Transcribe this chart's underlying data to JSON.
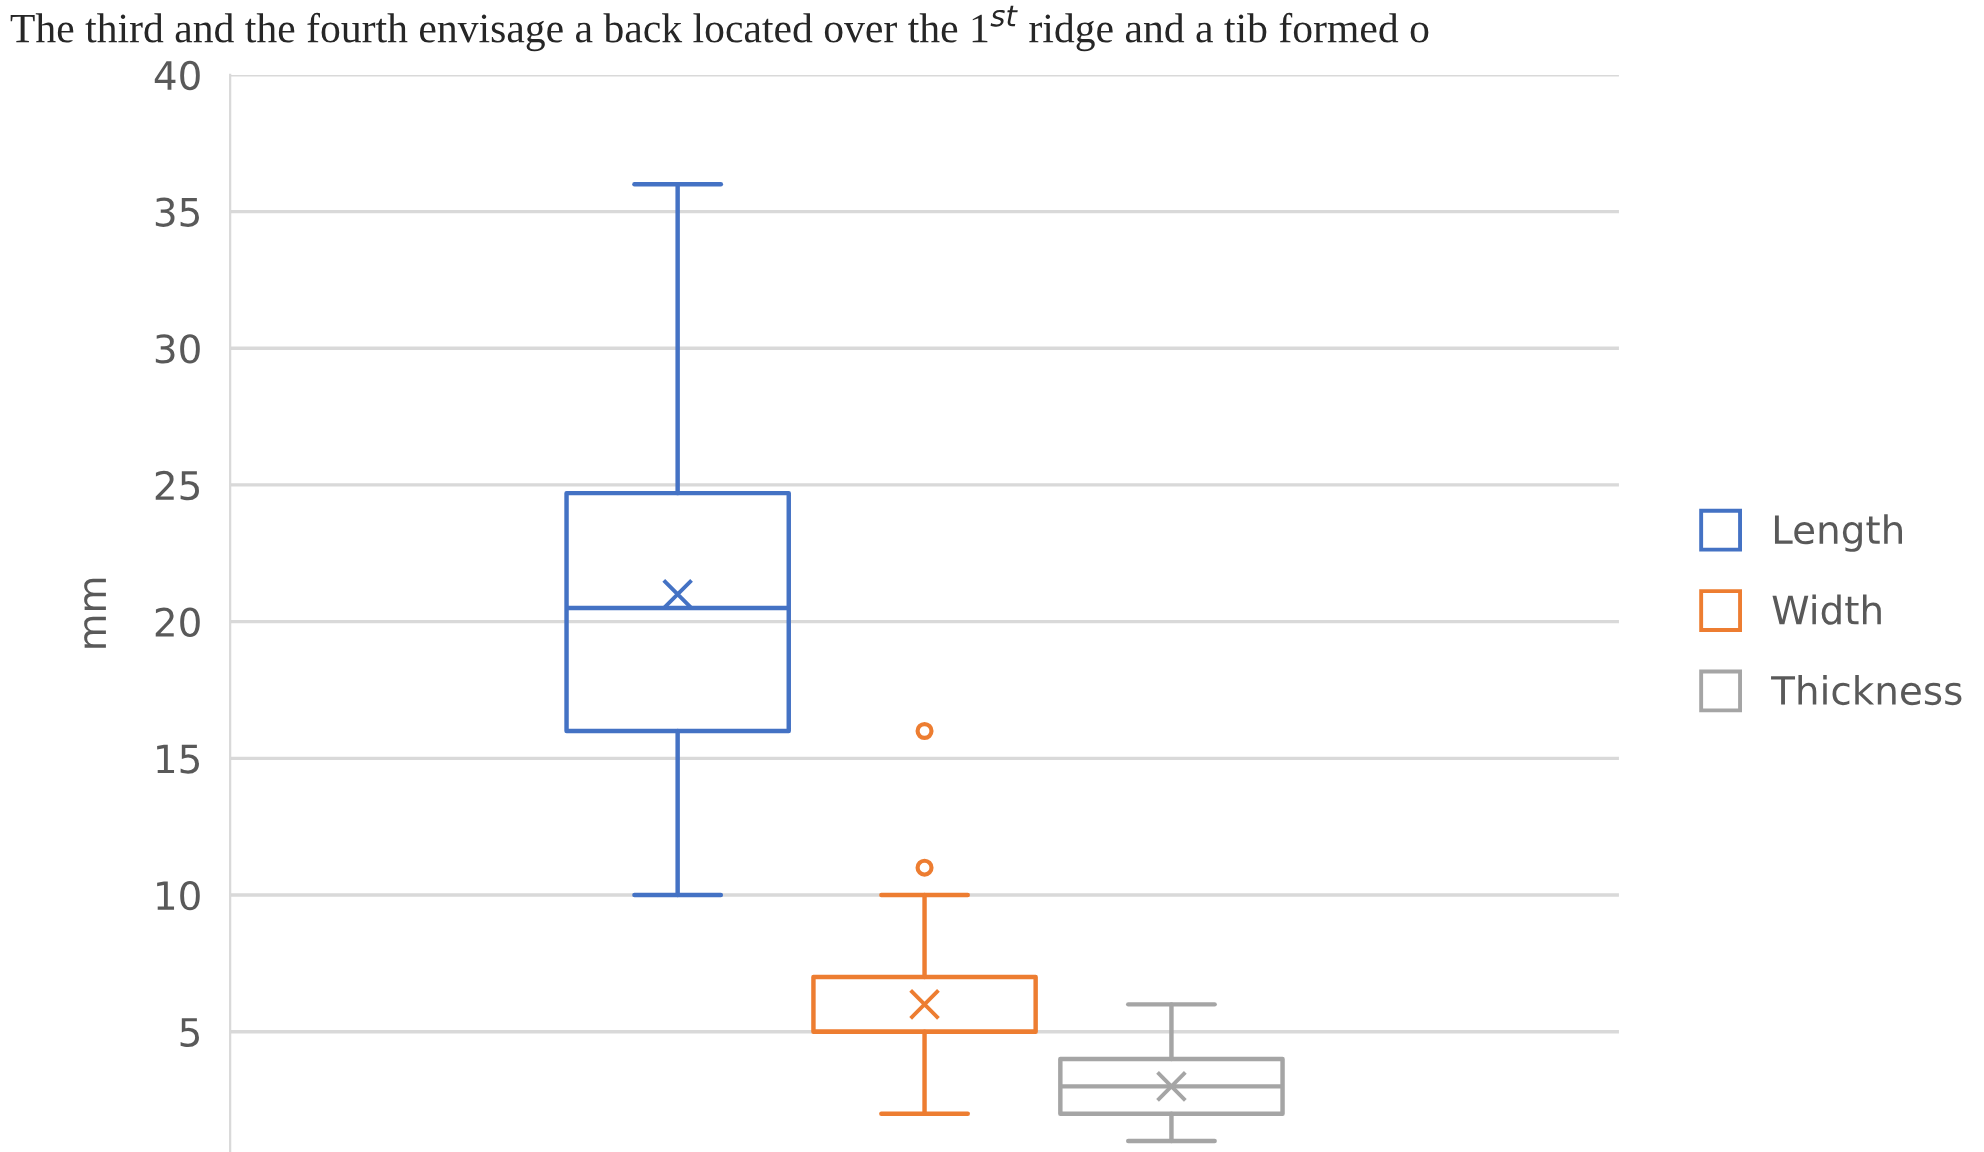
{
  "chart_data": {
    "type": "box",
    "ylabel": "mm",
    "categories": [
      null
    ],
    "ylim": [
      0.6,
      40
    ],
    "yticks": [
      5,
      10,
      15,
      20,
      25,
      30,
      35,
      40
    ],
    "grid": "y",
    "legend": "right",
    "annotations": [
      "The third and the fourth envisage a back located over the 1$^{st}$ ridge and a tib formed o"
    ],
    "series": [
      {
        "name": "Length",
        "color": "#4472c4",
        "boxes": [
          {
            "low": 10,
            "q1": 16,
            "median": 20.5,
            "q3": 24.7,
            "high": 36,
            "mean": 21
          }
        ]
      },
      {
        "name": "Width",
        "color": "#ed7d31",
        "boxes": [
          {
            "low": 2,
            "q1": 5,
            "median": 5,
            "q3": 7,
            "high": 10,
            "mean": 6,
            "outliers": [
              11,
              16
            ]
          }
        ]
      },
      {
        "name": "Thickness",
        "color": "#a5a5a5",
        "boxes": [
          {
            "low": 1,
            "q1": 2,
            "median": 3,
            "q3": 4,
            "high": 6,
            "mean": 3
          }
        ]
      }
    ]
  }
}
